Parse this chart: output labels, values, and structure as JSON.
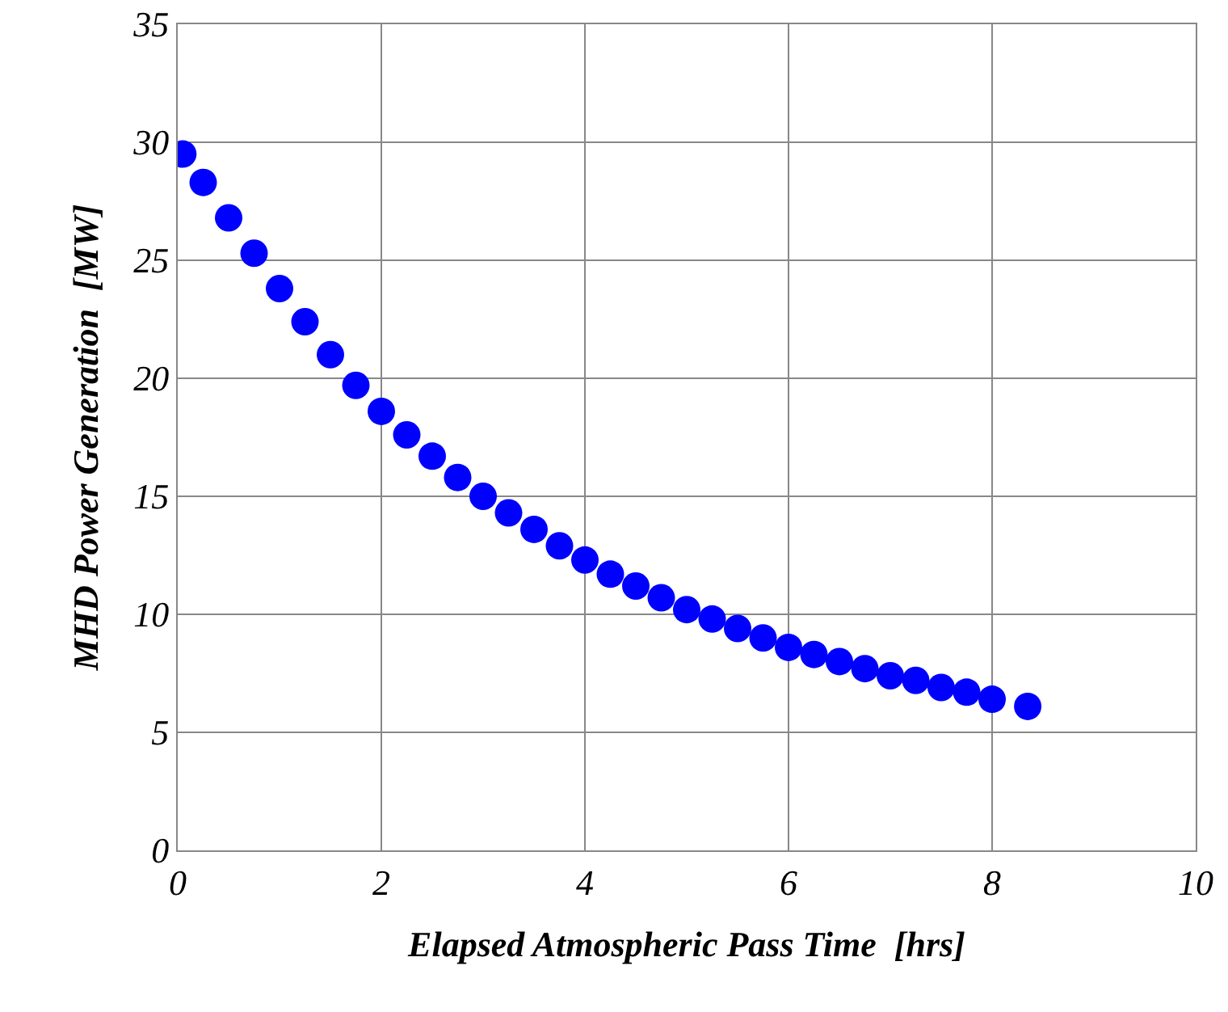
{
  "chart_data": {
    "type": "scatter",
    "xlabel": "Elapsed Atmospheric Pass Time  [hrs]",
    "ylabel": "MHD Power Generation  [MW]",
    "x": [
      0.05,
      0.25,
      0.5,
      0.75,
      1,
      1.25,
      1.5,
      1.75,
      2,
      2.25,
      2.5,
      2.75,
      3,
      3.25,
      3.5,
      3.75,
      4,
      4.25,
      4.5,
      4.75,
      5,
      5.25,
      5.5,
      5.75,
      6,
      6.25,
      6.5,
      6.75,
      7,
      7.25,
      7.5,
      7.75,
      8,
      8.35
    ],
    "series": [
      {
        "color": "#0000ff",
        "values": [
          29.5,
          28.3,
          26.8,
          25.3,
          23.8,
          22.4,
          21.0,
          19.7,
          18.6,
          17.6,
          16.7,
          15.8,
          15.0,
          14.3,
          13.6,
          12.9,
          12.3,
          11.7,
          11.2,
          10.7,
          10.2,
          9.8,
          9.4,
          9.0,
          8.6,
          8.3,
          8.0,
          7.7,
          7.4,
          7.2,
          6.9,
          6.7,
          6.4,
          6.1
        ]
      }
    ],
    "xlim": [
      0,
      10
    ],
    "xticks": [
      0,
      2,
      4,
      6,
      8,
      10
    ],
    "ylim": [
      0,
      35
    ],
    "yticks": [
      0,
      5,
      10,
      15,
      20,
      25,
      30,
      35
    ],
    "grid": true,
    "marker": "circle"
  }
}
